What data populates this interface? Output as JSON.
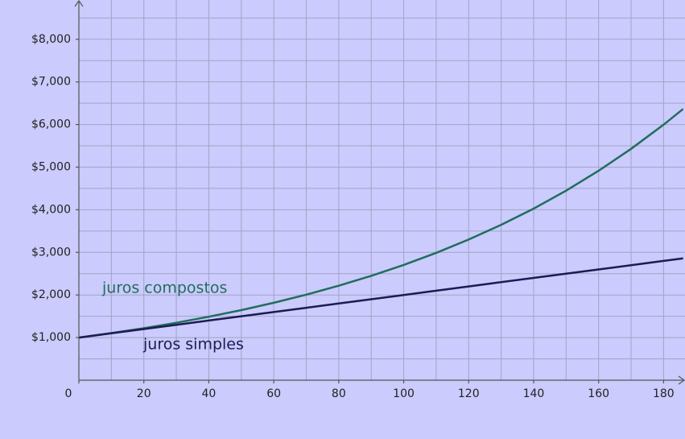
{
  "chart_data": {
    "type": "line",
    "x": [
      0,
      10,
      20,
      30,
      40,
      50,
      60,
      70,
      80,
      90,
      100,
      110,
      120,
      130,
      140,
      150,
      160,
      170,
      180,
      186
    ],
    "series": [
      {
        "name": "juros compostos",
        "color": "#1f6e5c",
        "values": [
          1000,
          1105,
          1220,
          1348,
          1489,
          1645,
          1817,
          2007,
          2217,
          2449,
          2705,
          2988,
          3300,
          3646,
          4027,
          4448,
          4914,
          5428,
          5996,
          6365
        ]
      },
      {
        "name": "juros simples",
        "color": "#1c1c52",
        "values": [
          1000,
          1100,
          1200,
          1300,
          1400,
          1500,
          1600,
          1700,
          1800,
          1900,
          2000,
          2100,
          2200,
          2300,
          2400,
          2500,
          2600,
          2700,
          2800,
          2860
        ]
      }
    ],
    "xlim": [
      0,
      186.6
    ],
    "ylim": [
      0,
      8922
    ],
    "xticks": [
      0,
      20,
      40,
      60,
      80,
      100,
      120,
      140,
      160,
      180
    ],
    "yticks": [
      {
        "value": 1000,
        "label": "$1,000"
      },
      {
        "value": 2000,
        "label": "$2,000"
      },
      {
        "value": 3000,
        "label": "$3,000"
      },
      {
        "value": 4000,
        "label": "$4,000"
      },
      {
        "value": 5000,
        "label": "$5,000"
      },
      {
        "value": 6000,
        "label": "$6,000"
      },
      {
        "value": 7000,
        "label": "$7,000"
      },
      {
        "value": 8000,
        "label": "$8,000"
      }
    ],
    "xgrid": [
      10,
      20,
      30,
      40,
      50,
      60,
      70,
      80,
      90,
      100,
      110,
      120,
      130,
      140,
      150,
      160,
      170,
      180
    ],
    "ygrid": [
      500,
      1000,
      1500,
      2000,
      2500,
      3000,
      3500,
      4000,
      4500,
      5000,
      5500,
      6000,
      6500,
      7000,
      7500,
      8000,
      8500
    ],
    "grid": true
  }
}
